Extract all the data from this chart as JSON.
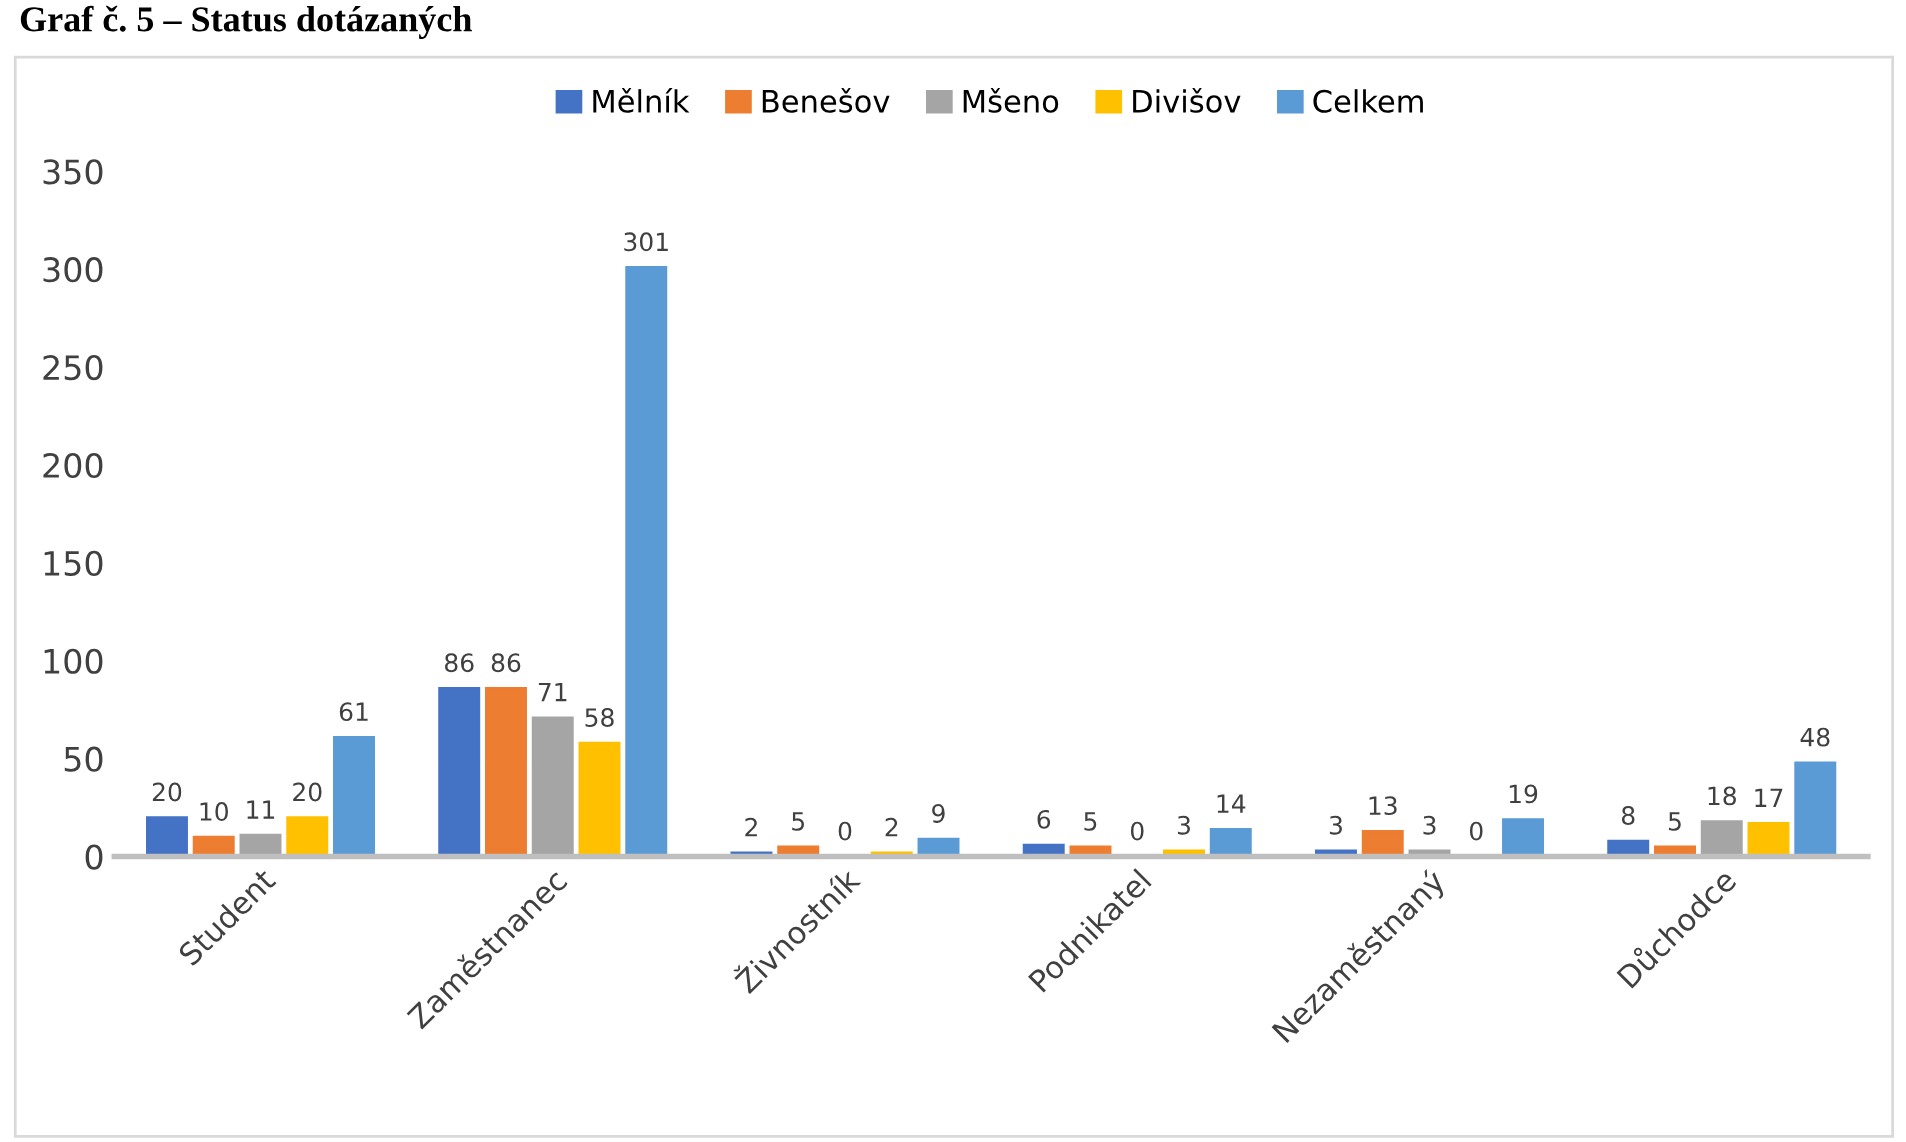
{
  "chart_data": {
    "type": "bar",
    "title": "Graf č. 5 – Status dotázaných",
    "categories": [
      "Student",
      "Zaměstnanec",
      "Živnostník",
      "Podnikatel",
      "Nezaměstnaný",
      "Důchodce"
    ],
    "series": [
      {
        "name": "Mělník",
        "color": "#4472c4",
        "values": [
          20,
          86,
          2,
          6,
          3,
          8
        ]
      },
      {
        "name": "Benešov",
        "color": "#ed7d31",
        "values": [
          10,
          86,
          5,
          5,
          13,
          5
        ]
      },
      {
        "name": "Mšeno",
        "color": "#a5a5a5",
        "values": [
          11,
          71,
          0,
          0,
          3,
          18
        ]
      },
      {
        "name": "Divišov",
        "color": "#ffc000",
        "values": [
          20,
          58,
          2,
          3,
          0,
          17
        ]
      },
      {
        "name": "Celkem",
        "color": "#5b9bd5",
        "values": [
          61,
          301,
          9,
          14,
          19,
          48
        ]
      }
    ],
    "ylim": [
      0,
      350
    ],
    "yticks": [
      0,
      50,
      100,
      150,
      200,
      250,
      300,
      350
    ],
    "grid": false,
    "legend": "top",
    "data_labels": true
  }
}
